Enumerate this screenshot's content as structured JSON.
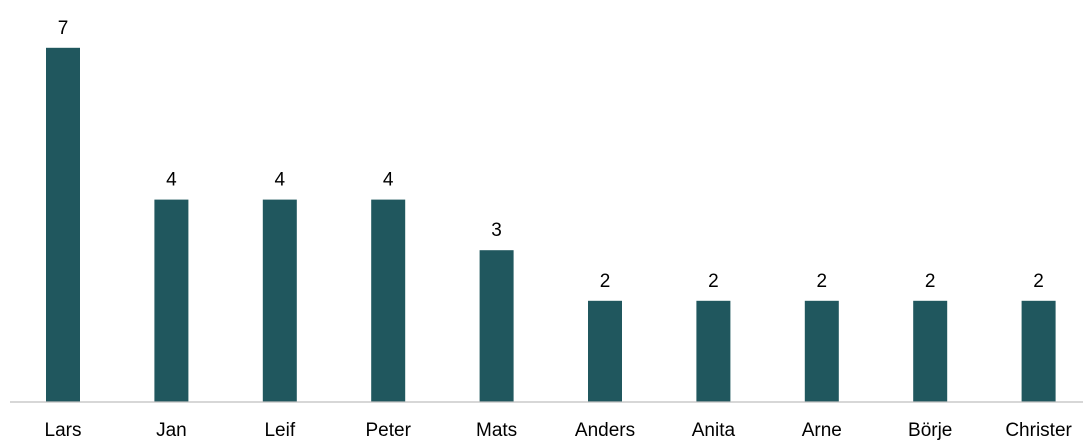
{
  "chart_data": {
    "type": "bar",
    "title": "",
    "xlabel": "",
    "ylabel": "",
    "categories": [
      "Lars",
      "Jan",
      "Leif",
      "Peter",
      "Mats",
      "Anders",
      "Anita",
      "Arne",
      "Börje",
      "Christer"
    ],
    "values": [
      7,
      4,
      4,
      4,
      3,
      2,
      2,
      2,
      2,
      2
    ],
    "ylim": [
      0,
      7
    ],
    "grid": false,
    "legend": "none",
    "data_labels": true,
    "colors": {
      "bar": "#20575E",
      "axis": "#BFBFBF",
      "text": "#000000"
    }
  }
}
